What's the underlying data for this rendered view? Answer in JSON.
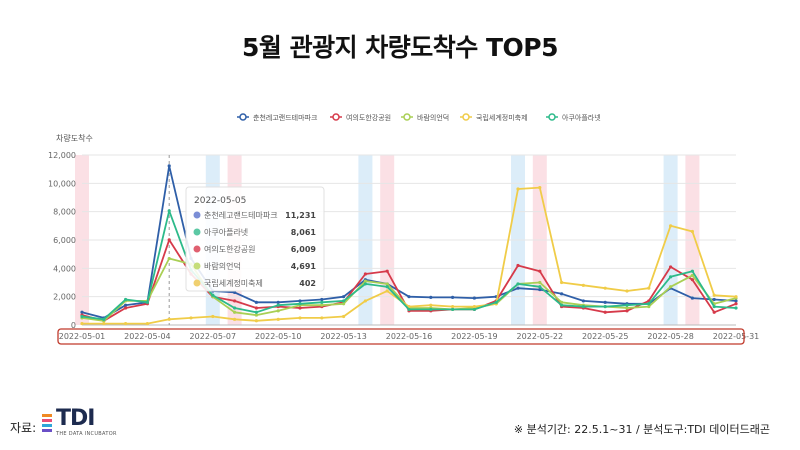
{
  "title": "5월 관광지 차량도착수 TOP5",
  "footer": {
    "source_label": "자료:",
    "logo_text": "TDI",
    "logo_sub": "THE DATA INCUBATOR",
    "note": "※ 분석기간: 22.5.1~31 / 분석도구:TDI 데이터드래곤"
  },
  "tooltip": {
    "date": "2022-05-05",
    "rows": [
      {
        "label": "춘천레고랜드테마파크",
        "value": "11,231",
        "color": "#7b8ed6"
      },
      {
        "label": "아쿠아플라넷",
        "value": "8,061",
        "color": "#5cc8a4"
      },
      {
        "label": "여의도한강공원",
        "value": "6,009",
        "color": "#e06070"
      },
      {
        "label": "바람의언덕",
        "value": "4,691",
        "color": "#c5dd7a"
      },
      {
        "label": "국립세계정미축제",
        "value": "402",
        "color": "#f0d070"
      }
    ]
  },
  "chart_data": {
    "type": "line",
    "ylabel": "차량도착수",
    "ylim": [
      0,
      12000
    ],
    "yticks": [
      "0",
      "2,000",
      "4,000",
      "6,000",
      "8,000",
      "10,000",
      "12,000"
    ],
    "xtick_labels": [
      "2022-05-01",
      "2022-05-04",
      "2022-05-07",
      "2022-05-10",
      "2022-05-13",
      "2022-05-16",
      "2022-05-19",
      "2022-05-22",
      "2022-05-25",
      "2022-05-28",
      "2022-05-31"
    ],
    "x": [
      "2022-05-01",
      "2022-05-02",
      "2022-05-03",
      "2022-05-04",
      "2022-05-05",
      "2022-05-06",
      "2022-05-07",
      "2022-05-08",
      "2022-05-09",
      "2022-05-10",
      "2022-05-11",
      "2022-05-12",
      "2022-05-13",
      "2022-05-14",
      "2022-05-15",
      "2022-05-16",
      "2022-05-17",
      "2022-05-18",
      "2022-05-19",
      "2022-05-20",
      "2022-05-21",
      "2022-05-22",
      "2022-05-23",
      "2022-05-24",
      "2022-05-25",
      "2022-05-26",
      "2022-05-27",
      "2022-05-28",
      "2022-05-29",
      "2022-05-30",
      "2022-05-31"
    ],
    "grid": true,
    "legend_position": "top",
    "series": [
      {
        "name": "춘천레고랜드테마파크",
        "color": "#2f5fa8",
        "values": [
          900,
          500,
          1400,
          1600,
          11231,
          4700,
          2400,
          2300,
          1600,
          1600,
          1700,
          1800,
          2000,
          3200,
          2900,
          2000,
          1950,
          1950,
          1900,
          2000,
          2600,
          2500,
          2200,
          1700,
          1600,
          1500,
          1500,
          2600,
          1900,
          1800,
          1700
        ]
      },
      {
        "name": "여의도한강공원",
        "color": "#d63a4a",
        "values": [
          700,
          300,
          1200,
          1500,
          6009,
          3600,
          2000,
          1700,
          1200,
          1300,
          1200,
          1300,
          1600,
          3600,
          3800,
          1000,
          1000,
          1100,
          1100,
          1700,
          4200,
          3800,
          1300,
          1200,
          900,
          1000,
          1700,
          4100,
          3200,
          900,
          1500
        ]
      },
      {
        "name": "바람의언덕",
        "color": "#a9cf54",
        "values": [
          500,
          300,
          1700,
          1700,
          4691,
          4300,
          2000,
          900,
          700,
          1000,
          1400,
          1400,
          1500,
          3100,
          2900,
          1200,
          1200,
          1100,
          1200,
          1500,
          2900,
          3000,
          1600,
          1400,
          1300,
          1200,
          1300,
          2700,
          3500,
          1500,
          1900
        ]
      },
      {
        "name": "국립세계정미축제",
        "color": "#f0cc48",
        "values": [
          100,
          100,
          100,
          100,
          402,
          500,
          600,
          400,
          300,
          400,
          500,
          500,
          600,
          1700,
          2400,
          1300,
          1400,
          1300,
          1300,
          1500,
          9600,
          9700,
          3000,
          2800,
          2600,
          2400,
          2600,
          7000,
          6600,
          2100,
          2000
        ]
      },
      {
        "name": "아쿠아플라넷",
        "color": "#2dba8a",
        "values": [
          600,
          400,
          1800,
          1600,
          8061,
          3900,
          2100,
          1200,
          900,
          1400,
          1500,
          1600,
          1700,
          2900,
          2700,
          1100,
          1100,
          1100,
          1100,
          1600,
          2900,
          2700,
          1400,
          1300,
          1300,
          1400,
          1500,
          3400,
          3800,
          1300,
          1200
        ]
      }
    ],
    "shaded_days": {
      "pink": [
        "2022-05-01",
        "2022-05-08",
        "2022-05-15",
        "2022-05-22",
        "2022-05-29"
      ],
      "blue": [
        "2022-05-07",
        "2022-05-14",
        "2022-05-21",
        "2022-05-28"
      ]
    },
    "highlight_day": "2022-05-05"
  }
}
